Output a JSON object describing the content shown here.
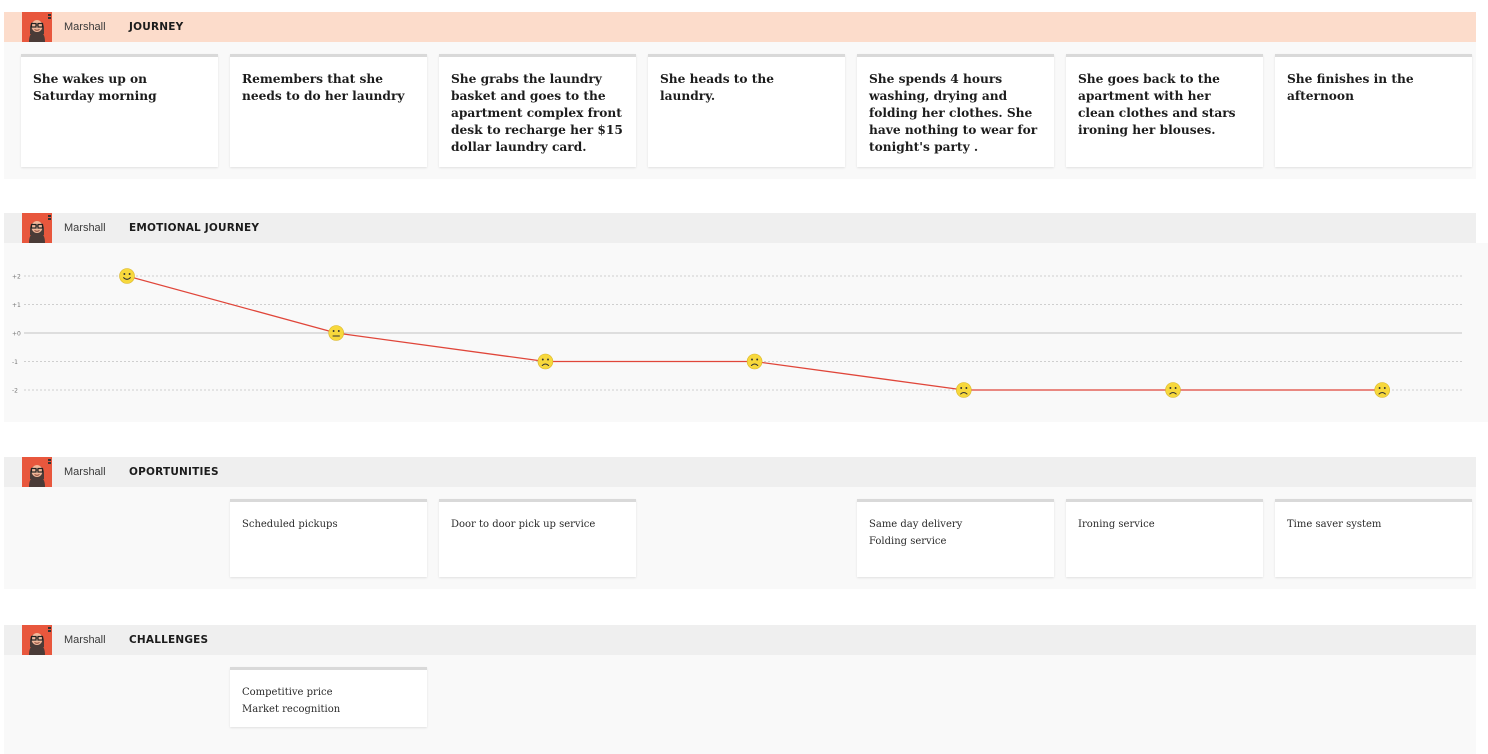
{
  "persona_name": "Marshall",
  "colors": {
    "journey_header_bg": "#fcdccb",
    "header_bg": "#efefef",
    "body_bg": "#f9f9f9",
    "avatar_bg": "#e8573d",
    "line": "#e0463a",
    "face": "#f7d83c"
  },
  "journey": {
    "title": "JOURNEY",
    "steps": [
      "She wakes up on Saturday morning",
      "Remembers that she needs to do her laundry",
      "She grabs the laundry basket and goes to the apartment complex front desk to recharge her $15 dollar laundry card.",
      "She heads to the laundry.",
      "She spends 4 hours washing, drying and folding her clothes. She have nothing to wear for tonight's party .",
      "She goes back to the apartment with her clean clothes and stars ironing her blouses.",
      "She finishes in the afternoon"
    ]
  },
  "emotional_journey": {
    "title": "EMOTIONAL JOURNEY"
  },
  "chart_data": {
    "type": "line",
    "x": [
      1,
      2,
      3,
      4,
      5,
      6,
      7
    ],
    "values": [
      2,
      0,
      -1,
      -1,
      -2,
      -2,
      -2
    ],
    "faces": [
      "happy",
      "neutral",
      "sad",
      "sad",
      "sad",
      "sad",
      "sad"
    ],
    "y_ticks": [
      "+2",
      "+1",
      "+0",
      "-1",
      "-2"
    ],
    "ylim": [
      -2,
      2
    ],
    "grid": true
  },
  "opportunities": {
    "title": "OPORTUNITIES",
    "cards": [
      {
        "col": 1,
        "lines": [
          "Scheduled pickups"
        ]
      },
      {
        "col": 2,
        "lines": [
          "Door to door pick up service"
        ]
      },
      {
        "col": 4,
        "lines": [
          "Same day delivery",
          "Folding service"
        ]
      },
      {
        "col": 5,
        "lines": [
          "Ironing service"
        ]
      },
      {
        "col": 6,
        "lines": [
          "Time saver system"
        ]
      }
    ]
  },
  "challenges": {
    "title": "CHALLENGES",
    "cards": [
      {
        "col": 1,
        "lines": [
          "Competitive price",
          "Market recognition"
        ]
      }
    ]
  }
}
